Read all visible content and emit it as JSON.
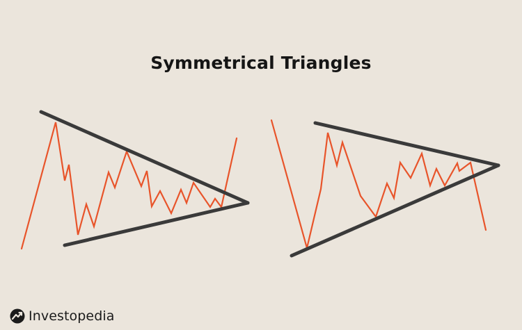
{
  "title": "Symmetrical Triangles",
  "brand": {
    "name": "Investopedia"
  },
  "colors": {
    "background": "#ebe5dc",
    "price_line": "#e8542a",
    "trendline": "#3a3a3a",
    "text": "#151515"
  },
  "diagrams": [
    {
      "name": "breakout-up",
      "breakout_direction": "up"
    },
    {
      "name": "breakout-down",
      "breakout_direction": "down"
    }
  ]
}
